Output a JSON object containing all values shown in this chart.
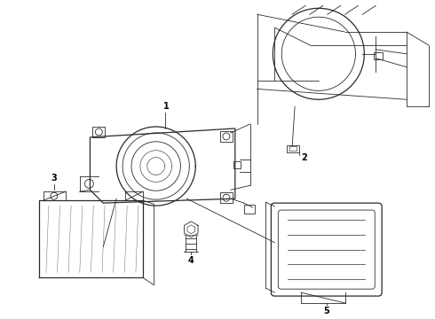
{
  "background_color": "#ffffff",
  "fig_width": 4.9,
  "fig_height": 3.6,
  "dpi": 100,
  "line_color": "#2a2a2a",
  "text_color": "#000000",
  "lw_thin": 0.6,
  "lw_med": 0.9,
  "lw_thick": 1.2
}
